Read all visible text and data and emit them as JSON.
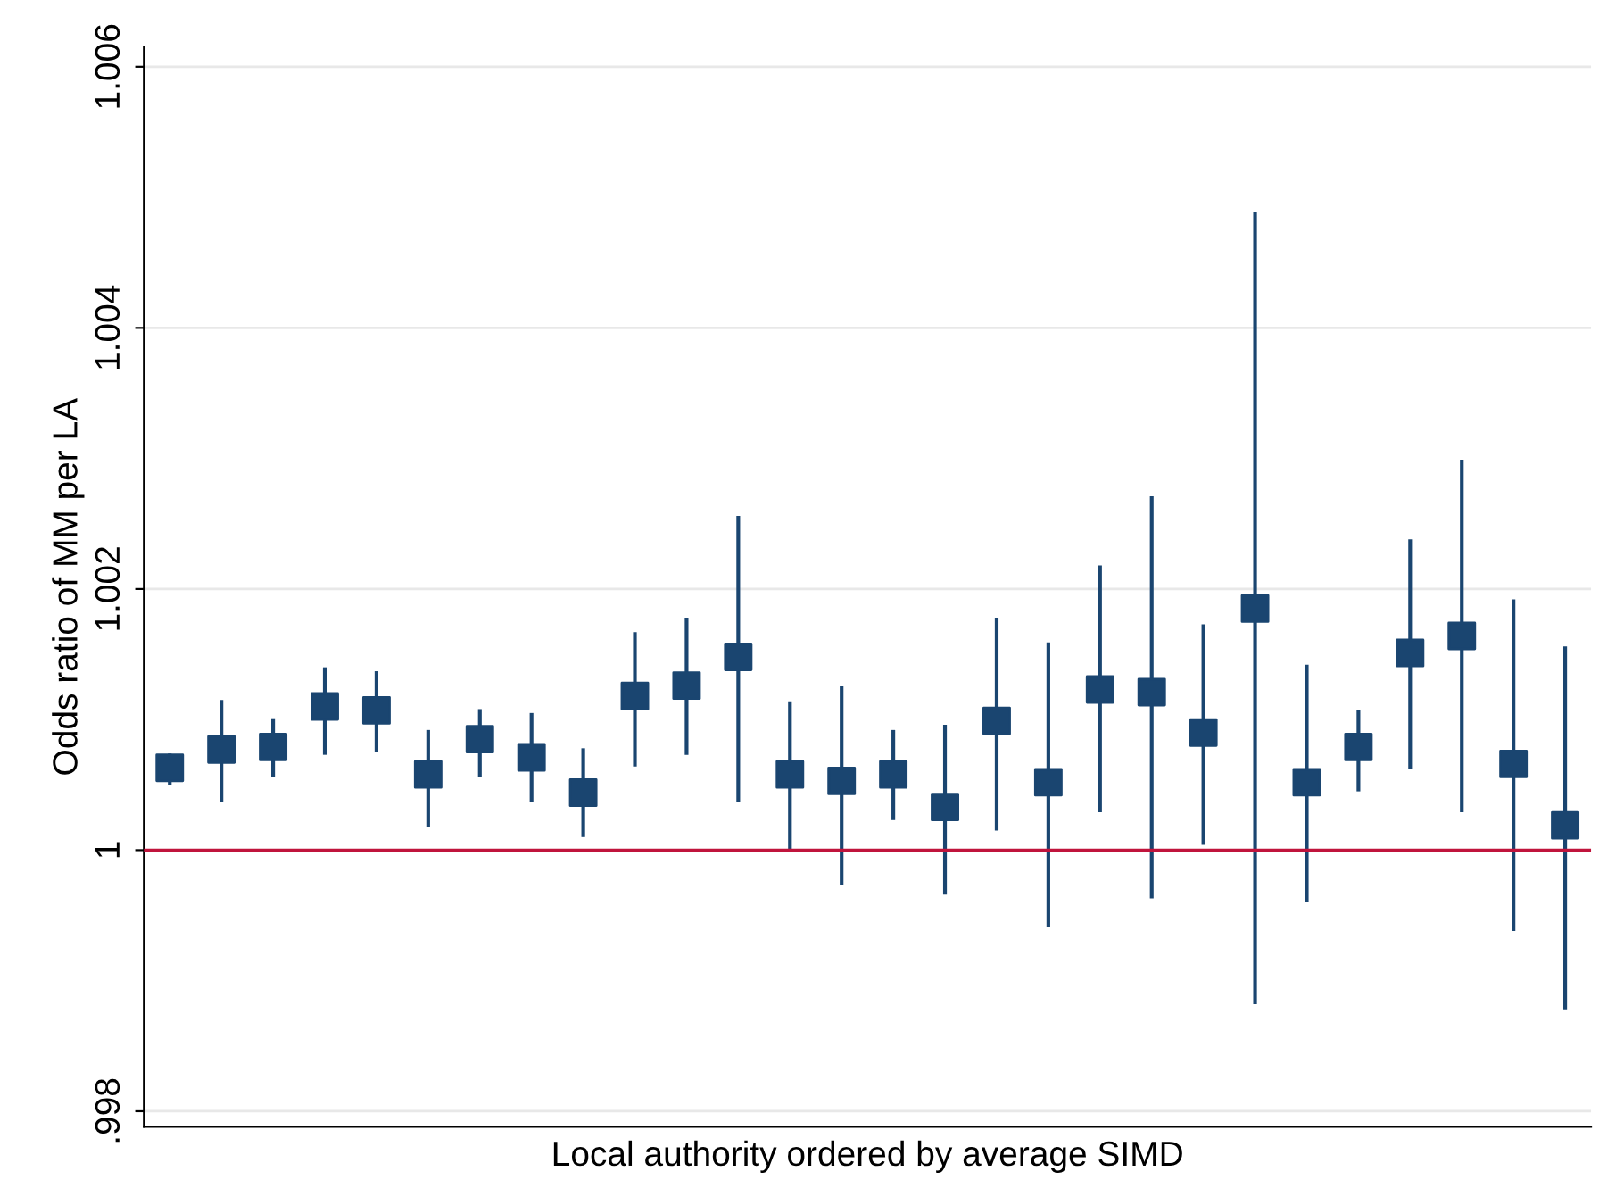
{
  "chart_data": {
    "type": "scatter",
    "xlabel": "Local authority ordered by average SIMD",
    "ylabel": "Odds ratio of MM per LA",
    "categories": [
      null,
      null,
      null,
      null,
      null,
      null,
      null,
      null,
      null,
      null,
      null,
      null,
      null,
      null,
      null,
      null,
      null,
      null,
      null,
      null,
      null,
      null,
      null,
      null,
      null,
      null,
      null,
      null
    ],
    "series": [
      {
        "color": "#1a4570",
        "values": [
          1.00063,
          1.00077,
          1.00079,
          1.0011,
          1.00107,
          1.00058,
          1.00085,
          1.00071,
          1.00044,
          1.00118,
          1.00126,
          1.00148,
          1.00058,
          1.00053,
          1.00058,
          1.00033,
          1.00099,
          1.00052,
          1.00123,
          1.00121,
          1.0009,
          1.00185,
          1.00052,
          1.00079,
          1.00151,
          1.00164,
          1.00066,
          1.00019
        ],
        "errors": [
          [
            1.0005,
            1.00074
          ],
          [
            1.00037,
            1.00115
          ],
          [
            1.00056,
            1.00101
          ],
          [
            1.00073,
            1.0014
          ],
          [
            1.00075,
            1.00137
          ],
          [
            1.00018,
            1.00092
          ],
          [
            1.00056,
            1.00108
          ],
          [
            1.00037,
            1.00105
          ],
          [
            1.0001,
            1.00078
          ],
          [
            1.00064,
            1.00167
          ],
          [
            1.00073,
            1.00178
          ],
          [
            1.00037,
            1.00256
          ],
          [
            1.0,
            1.00114
          ],
          [
            0.99973,
            1.00126
          ],
          [
            1.00023,
            1.00092
          ],
          [
            0.99966,
            1.00096
          ],
          [
            1.00015,
            1.00178
          ],
          [
            0.99941,
            1.00159
          ],
          [
            1.00029,
            1.00218
          ],
          [
            0.99963,
            1.00271
          ],
          [
            1.00004,
            1.00173
          ],
          [
            0.99882,
            1.00489
          ],
          [
            0.9996,
            1.00142
          ],
          [
            1.00045,
            1.00107
          ],
          [
            1.00062,
            1.00238
          ],
          [
            1.00029,
            1.00299
          ],
          [
            0.99938,
            1.00192
          ],
          [
            0.99878,
            1.00156
          ]
        ]
      }
    ],
    "ylim": [
      0.99788,
      1.00615
    ],
    "yticks": [
      {
        "value": 0.998,
        "label": ".998"
      },
      {
        "value": 1,
        "label": "1"
      },
      {
        "value": 1.002,
        "label": "1.002"
      },
      {
        "value": 1.004,
        "label": "1.004"
      },
      {
        "value": 1.006,
        "label": "1.006"
      }
    ],
    "ref_lines": [
      {
        "axis": "y",
        "value": 1,
        "color": "#c0143c"
      }
    ],
    "grid": "y",
    "marker": "square",
    "legend": false
  }
}
